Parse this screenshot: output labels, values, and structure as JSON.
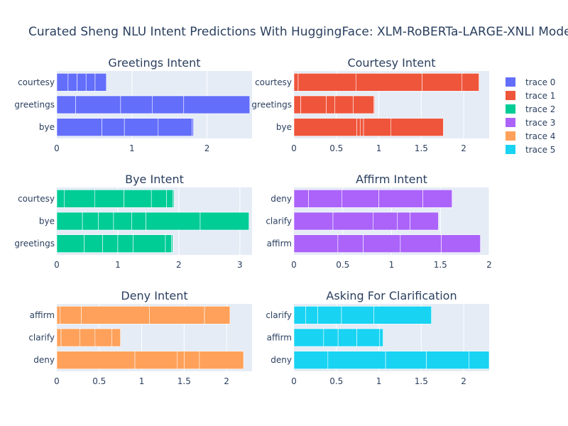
{
  "title": "Curated Sheng NLU Intent Predictions With HuggingFace: XLM-RoBERTa-LARGE-XNLI Model",
  "legend": {
    "placement": "right",
    "entries": [
      {
        "name": "trace 0",
        "color": "#636efa"
      },
      {
        "name": "trace 1",
        "color": "#EF553B"
      },
      {
        "name": "trace 2",
        "color": "#00cc96"
      },
      {
        "name": "trace 3",
        "color": "#ab63fa"
      },
      {
        "name": "trace 4",
        "color": "#FFA15A"
      },
      {
        "name": "trace 5",
        "color": "#19d3f3"
      }
    ]
  },
  "chart_data": [
    {
      "type": "bar",
      "orientation": "h",
      "stacked": true,
      "title": "Greetings Intent",
      "series_name": "trace 0",
      "color": "#636efa",
      "categories": [
        "bye",
        "greetings",
        "courtesy"
      ],
      "xlim": [
        0,
        2.6
      ],
      "xticks": [
        0,
        1,
        2
      ],
      "segments": [
        [
          0.6,
          0.3,
          0.45,
          0.45,
          0.02
        ],
        [
          0.25,
          0.6,
          0.42,
          0.42,
          0.88
        ],
        [
          0.15,
          0.12,
          0.12,
          0.12,
          0.15
        ]
      ]
    },
    {
      "type": "bar",
      "orientation": "h",
      "stacked": true,
      "title": "Courtesy Intent",
      "series_name": "trace 1",
      "color": "#EF553B",
      "categories": [
        "bye",
        "greetings",
        "courtesy"
      ],
      "xlim": [
        0,
        2.3
      ],
      "xticks": [
        0,
        0.5,
        1,
        1.5,
        2
      ],
      "xticklabels": [
        "0",
        "0.5",
        "1",
        "1.5",
        "2"
      ],
      "segments": [
        [
          0.74,
          0.04,
          0.04,
          0.32,
          0.62
        ],
        [
          0.08,
          0.3,
          0.1,
          0.22,
          0.24,
          0.01
        ],
        [
          0.05,
          0.68,
          0.78,
          0.47,
          0.2
        ]
      ]
    },
    {
      "type": "bar",
      "orientation": "h",
      "stacked": true,
      "title": "Bye Intent",
      "series_name": "trace 2",
      "color": "#00cc96",
      "categories": [
        "greetings",
        "bye",
        "courtesy"
      ],
      "xlim": [
        0,
        3.2
      ],
      "xticks": [
        0,
        1,
        2,
        3
      ],
      "segments": [
        [
          0.45,
          0.3,
          0.25,
          0.25,
          0.53,
          0.1,
          0.02
        ],
        [
          0.42,
          0.26,
          0.25,
          0.3,
          0.23,
          0.89,
          0.8
        ],
        [
          0.12,
          0.5,
          0.48,
          0.45,
          0.25,
          0.1,
          0.02
        ]
      ]
    },
    {
      "type": "bar",
      "orientation": "h",
      "stacked": true,
      "title": "Affirm Intent",
      "series_name": "trace 3",
      "color": "#ab63fa",
      "categories": [
        "affirm",
        "clarify",
        "deny"
      ],
      "xlim": [
        0,
        2
      ],
      "xticks": [
        0,
        0.5,
        1,
        1.5,
        2
      ],
      "xticklabels": [
        "0",
        "0.5",
        "1",
        "1.5",
        "2"
      ],
      "segments": [
        [
          0.45,
          0.26,
          0.38,
          0.42,
          0.4
        ],
        [
          0.4,
          0.41,
          0.25,
          0.13,
          0.29
        ],
        [
          0.15,
          0.34,
          0.38,
          0.45,
          0.3
        ]
      ]
    },
    {
      "type": "bar",
      "orientation": "h",
      "stacked": true,
      "title": "Deny Intent",
      "series_name": "trace 4",
      "color": "#FFA15A",
      "categories": [
        "deny",
        "clarify",
        "affirm"
      ],
      "xlim": [
        0,
        2.3
      ],
      "xticks": [
        0,
        0.5,
        1,
        1.5,
        2
      ],
      "xticklabels": [
        "0",
        "0.5",
        "1",
        "1.5",
        "2"
      ],
      "segments": [
        [
          0.92,
          0.5,
          0.08,
          0.18,
          0.52
        ],
        [
          0.05,
          0.22,
          0.18,
          0.2,
          0.1
        ],
        [
          0.04,
          0.25,
          0.8,
          0.65,
          0.3
        ]
      ]
    },
    {
      "type": "bar",
      "orientation": "h",
      "stacked": true,
      "title": "Asking For Clarification",
      "series_name": "trace 5",
      "color": "#19d3f3",
      "categories": [
        "deny",
        "affirm",
        "clarify"
      ],
      "xlim": [
        0,
        2.3
      ],
      "xticks": [
        0,
        0.5,
        1,
        1.5,
        2
      ],
      "xticklabels": [
        "0",
        "0.5",
        "1",
        "1.5",
        "2"
      ],
      "segments": [
        [
          0.4,
          0.68,
          0.48,
          0.5,
          0.24
        ],
        [
          0.35,
          0.17,
          0.22,
          0.27,
          0.04
        ],
        [
          0.14,
          0.14,
          0.28,
          0.38,
          0.68
        ]
      ]
    }
  ]
}
